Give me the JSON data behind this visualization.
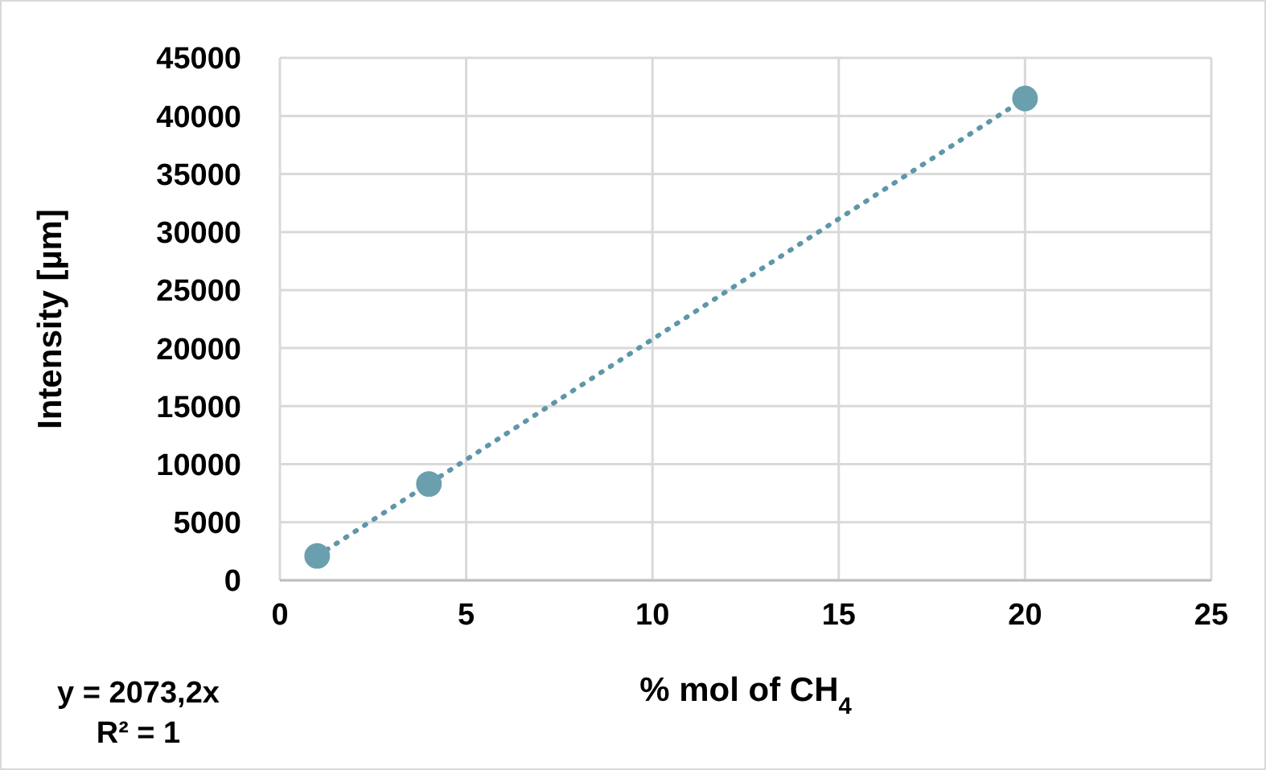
{
  "chart_data": {
    "type": "scatter",
    "xlabel": "% mol of CH$_{4}$",
    "ylabel": "Intensity [µm]",
    "annotations": [
      "y = 2073,2x",
      "R² = 1"
    ],
    "series": [
      {
        "color": "#6a9fae",
        "x": [
          1,
          4,
          20
        ],
        "values": [
          2100,
          8300,
          41500
        ],
        "marker": "circle"
      },
      {
        "type": "line",
        "color": "#5f97a8",
        "x": [
          1,
          20
        ],
        "values": [
          2100,
          41500
        ],
        "line_style": "dotted",
        "marker": "none"
      }
    ],
    "xlim": [
      0,
      25
    ],
    "xticks": [
      0,
      5,
      10,
      15,
      20,
      25
    ],
    "ylim": [
      0,
      45000
    ],
    "yticks": [
      0,
      5000,
      10000,
      15000,
      20000,
      25000,
      30000,
      35000,
      40000,
      45000
    ],
    "grid": true
  }
}
